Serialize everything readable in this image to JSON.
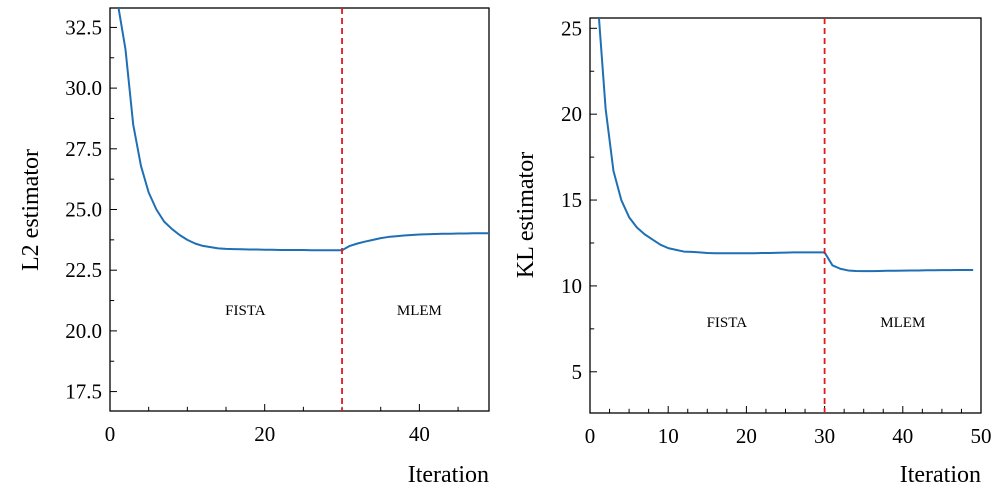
{
  "chart_data": [
    {
      "type": "line",
      "title": "",
      "xlabel": "Iteration",
      "ylabel": "L2 estimator",
      "xlim": [
        0,
        49
      ],
      "ylim": [
        16.7,
        33.3
      ],
      "xticks": [
        0,
        20,
        40
      ],
      "yticks": [
        17.5,
        20.0,
        22.5,
        25.0,
        27.5,
        30.0,
        32.5
      ],
      "ytick_labels": [
        "17.5",
        "20.0",
        "22.5",
        "25.0",
        "27.5",
        "30.0",
        "32.5"
      ],
      "grid": false,
      "series": [
        {
          "color": "#1f6fb4",
          "x": [
            1,
            2,
            3,
            4,
            5,
            6,
            7,
            8,
            9,
            10,
            11,
            12,
            13,
            14,
            15,
            16,
            17,
            18,
            19,
            20,
            21,
            22,
            23,
            24,
            25,
            26,
            27,
            28,
            29,
            30,
            31,
            32,
            33,
            34,
            35,
            36,
            37,
            38,
            39,
            40,
            41,
            42,
            43,
            44,
            45,
            46,
            47,
            48,
            49
          ],
          "y": [
            33.5,
            31.6,
            28.5,
            26.8,
            25.7,
            25.0,
            24.5,
            24.2,
            23.95,
            23.75,
            23.6,
            23.5,
            23.45,
            23.4,
            23.38,
            23.37,
            23.36,
            23.35,
            23.35,
            23.34,
            23.34,
            23.33,
            23.33,
            23.33,
            23.33,
            23.32,
            23.32,
            23.32,
            23.32,
            23.32,
            23.5,
            23.6,
            23.68,
            23.75,
            23.82,
            23.87,
            23.9,
            23.93,
            23.95,
            23.97,
            23.98,
            23.99,
            24.0,
            24.0,
            24.01,
            24.01,
            24.02,
            24.02,
            24.02
          ]
        }
      ],
      "vline": {
        "x": 30,
        "color": "#e0191f",
        "style": "dashed"
      },
      "annotations": [
        {
          "text": "FISTA",
          "x": 17.5,
          "y": 20.65
        },
        {
          "text": "MLEM",
          "x": 40,
          "y": 20.65
        }
      ]
    },
    {
      "type": "line",
      "title": "",
      "xlabel": "Iteration",
      "ylabel": "KL estimator",
      "xlim": [
        0,
        50
      ],
      "ylim": [
        2.6,
        25.6
      ],
      "xticks": [
        0,
        10,
        20,
        30,
        40,
        50
      ],
      "yticks": [
        5,
        10,
        15,
        20,
        25
      ],
      "grid": false,
      "series": [
        {
          "color": "#1f6fb4",
          "x": [
            1,
            2,
            3,
            4,
            5,
            6,
            7,
            8,
            9,
            10,
            11,
            12,
            13,
            14,
            15,
            16,
            17,
            18,
            19,
            20,
            21,
            22,
            23,
            24,
            25,
            26,
            27,
            28,
            29,
            30,
            31,
            32,
            33,
            34,
            35,
            36,
            37,
            38,
            39,
            40,
            41,
            42,
            43,
            44,
            45,
            46,
            47,
            48,
            49
          ],
          "y": [
            26.5,
            20.3,
            16.7,
            15.0,
            14.0,
            13.4,
            13.0,
            12.7,
            12.4,
            12.2,
            12.1,
            12.0,
            11.98,
            11.95,
            11.92,
            11.9,
            11.9,
            11.9,
            11.9,
            11.9,
            11.9,
            11.92,
            11.92,
            11.93,
            11.94,
            11.95,
            11.95,
            11.95,
            11.95,
            11.95,
            11.2,
            11.0,
            10.9,
            10.87,
            10.86,
            10.86,
            10.87,
            10.88,
            10.88,
            10.89,
            10.9,
            10.9,
            10.91,
            10.91,
            10.92,
            10.92,
            10.93,
            10.93,
            10.93
          ]
        }
      ],
      "vline": {
        "x": 30,
        "color": "#e0191f",
        "style": "dashed"
      },
      "annotations": [
        {
          "text": "FISTA",
          "x": 17.5,
          "y": 7.6
        },
        {
          "text": "MLEM",
          "x": 40,
          "y": 7.6
        }
      ]
    }
  ]
}
